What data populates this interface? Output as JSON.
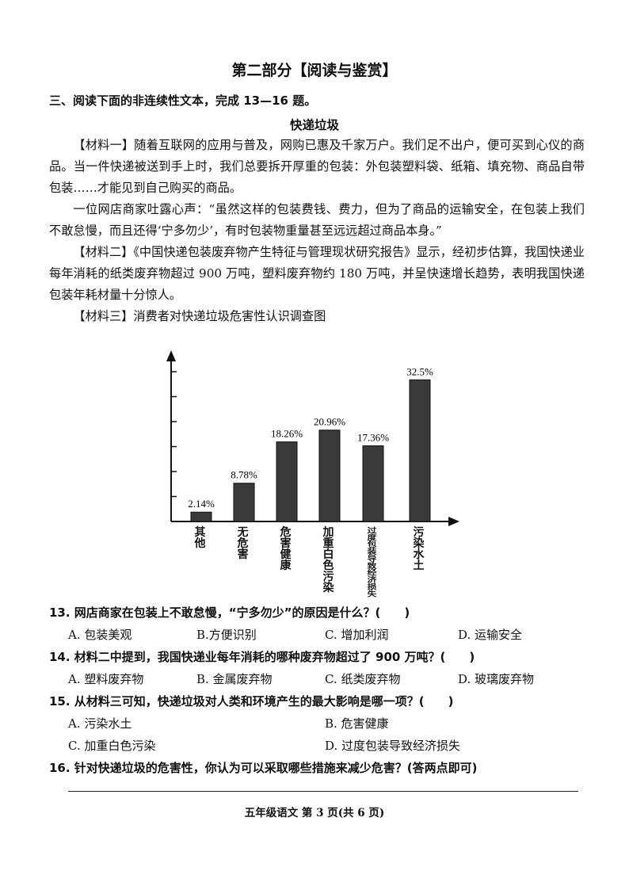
{
  "header": {
    "title": "第二部分【阅读与鉴赏】"
  },
  "section": {
    "heading": "三、阅读下面的非连续性文本，完成 13—16 题。"
  },
  "article": {
    "title": "快递垃圾",
    "paragraphs": [
      "【材料一】随着互联网的应用与普及，网购已惠及千家万户。我们足不出户，便可买到心仪的商品。当一件快递被送到手上时，我们总要拆开厚重的包装：外包装塑料袋、纸箱、填充物、商品自带包装……才能见到自己购买的商品。",
      "一位网店商家吐露心声：“虽然这样的包装费钱、费力，但为了商品的运输安全，在包装上我们不敢怠慢，而且还得‘宁多勿少’，有时包装物重量甚至远远超过商品本身。”",
      "【材料二】《中国快递包装废弃物产生特征与管理现状研究报告》显示，经初步估算，我国快递业每年消耗的纸类废弃物超过 900 万吨，塑料废弃物约 180 万吨，并呈快速增长趋势，表明我国快递包装年耗材量十分惊人。",
      "【材料三】消费者对快递垃圾危害性认识调查图"
    ]
  },
  "chart_data": {
    "type": "bar",
    "title": "",
    "categories": [
      "其他",
      "无危害",
      "危害健康",
      "加重白色污染",
      "过度包装导致经济损失",
      "污染水土"
    ],
    "values": [
      2.14,
      8.78,
      18.26,
      20.96,
      17.36,
      32.5
    ],
    "value_labels": [
      "2.14%",
      "8.78%",
      "18.26%",
      "20.96%",
      "17.36%",
      "32.5%"
    ],
    "xlabel": "",
    "ylabel": "",
    "ylim": [
      0,
      36
    ],
    "bar_color": "#3a3a3a",
    "grid": false
  },
  "questions": [
    {
      "stem": "13. 网店商家在包装上不敢怠慢，“宁多勿少”的原因是什么？(　　)",
      "options": [
        "A. 包装美观",
        "B.方便识别",
        "C. 增加利润",
        "D. 运输安全"
      ]
    },
    {
      "stem": "14. 材料二中提到，我国快递业每年消耗的哪种废弃物超过了 900 万吨？(　　)",
      "options": [
        "A. 塑料废弃物",
        "B. 金属废弃物",
        "C. 纸类废弃物",
        "D. 玻璃废弃物"
      ]
    },
    {
      "stem": "15. 从材料三可知，快递垃圾对人类和环境产生的最大影响是哪一项？(　　)",
      "options": [
        "A. 污染水土",
        "B. 危害健康",
        "C. 加重白色污染",
        "D. 过度包装导致经济损失"
      ]
    },
    {
      "stem": "16. 针对快递垃圾的危害性，你认为可以采取哪些措施来减少危害？(答两点即可)",
      "options": []
    }
  ],
  "footer": {
    "page": "五年级语文 第 3 页(共 6 页)"
  }
}
